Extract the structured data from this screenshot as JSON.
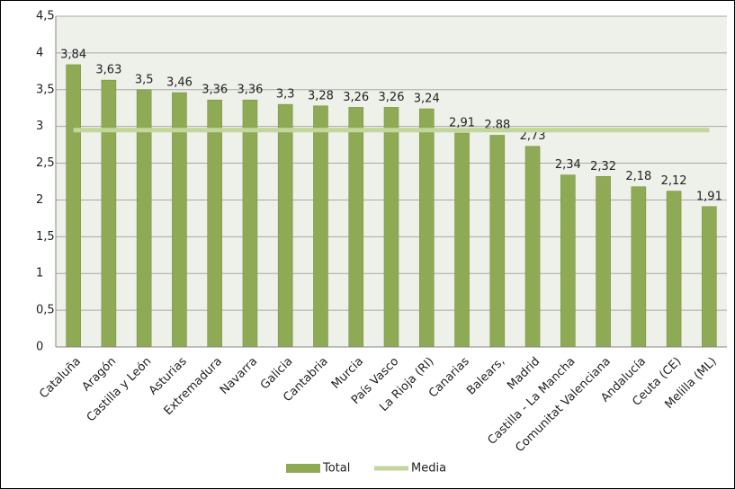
{
  "chart_data": {
    "type": "bar",
    "categories": [
      "Cataluña",
      "Aragón",
      "Castilla y León",
      "Asturias",
      "Extremadura",
      "Navarra",
      "Galicia",
      "Cantabria",
      "Murcia",
      "País Vasco",
      "La Rioja (RI)",
      "Canarias",
      "Balears,",
      "Madrid",
      "Castilla - La Mancha",
      "Comunitat Valenciana",
      "Andalucía",
      "Ceuta (CE)",
      "Melilla (ML)"
    ],
    "series": [
      {
        "name": "Total",
        "type": "bar",
        "color": "#8faa54",
        "values": [
          3.84,
          3.63,
          3.5,
          3.46,
          3.36,
          3.36,
          3.3,
          3.28,
          3.26,
          3.26,
          3.24,
          2.91,
          2.88,
          2.73,
          2.34,
          2.32,
          2.18,
          2.12,
          1.91
        ],
        "value_labels": [
          "3,84",
          "3,63",
          "3,5",
          "3,46",
          "3,36",
          "3,36",
          "3,3",
          "3,28",
          "3,26",
          "3,26",
          "3,24",
          "2,91",
          "2,88",
          "2,73",
          "2,34",
          "2,32",
          "2,18",
          "2,12",
          "1,91"
        ]
      },
      {
        "name": "Media",
        "type": "line",
        "color": "#c3d69b",
        "values": [
          2.95,
          2.95,
          2.95,
          2.95,
          2.95,
          2.95,
          2.95,
          2.95,
          2.95,
          2.95,
          2.95,
          2.95,
          2.95,
          2.95,
          2.95,
          2.95,
          2.95,
          2.95,
          2.95
        ]
      }
    ],
    "ylim": [
      0,
      4.5
    ],
    "yticks": [
      0,
      {
        "value": 0.5,
        "label": "0,5"
      },
      1,
      {
        "value": 1.5,
        "label": "1,5"
      },
      2,
      {
        "value": 2.5,
        "label": "2,5"
      },
      3,
      {
        "value": 3.5,
        "label": "3,5"
      },
      4,
      {
        "value": 4.5,
        "label": "4,5"
      }
    ],
    "grid": true,
    "legend": "bottom"
  }
}
